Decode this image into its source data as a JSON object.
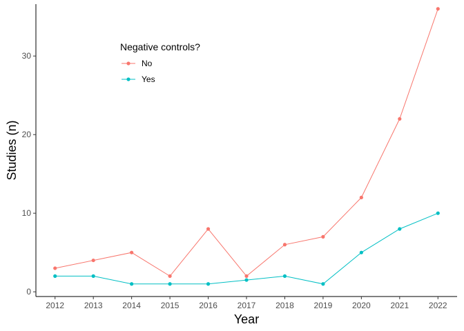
{
  "chart_data": {
    "type": "line",
    "xlabel": "Year",
    "ylabel": "Studies (n)",
    "x": [
      2012,
      2013,
      2014,
      2015,
      2016,
      2017,
      2018,
      2019,
      2020,
      2021,
      2022
    ],
    "x_ticks": [
      "2012",
      "2013",
      "2014",
      "2015",
      "2016",
      "2017",
      "2018",
      "2019",
      "2020",
      "2021",
      "2022"
    ],
    "y_ticks": [
      "0",
      "10",
      "20",
      "30"
    ],
    "y_tick_values": [
      0,
      10,
      20,
      30
    ],
    "ylim": [
      -0.6,
      36.6
    ],
    "xlim": [
      2011.5,
      2022.5
    ],
    "grid": false,
    "legend": {
      "title": "Negative controls?",
      "placement": "top-left"
    },
    "series": [
      {
        "name": "No",
        "color": "#F8766D",
        "values": [
          3,
          4,
          5,
          2,
          8,
          2,
          6,
          7,
          12,
          22,
          36
        ]
      },
      {
        "name": "Yes",
        "color": "#00BFC4",
        "values": [
          2,
          2,
          1,
          1,
          1,
          1.5,
          2,
          1,
          5,
          8,
          10
        ]
      }
    ]
  }
}
